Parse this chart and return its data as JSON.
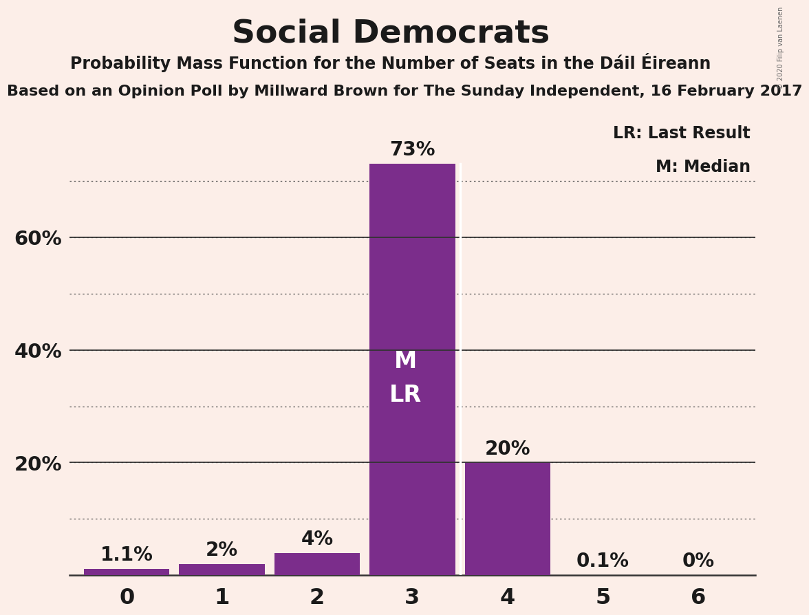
{
  "title": "Social Democrats",
  "subtitle": "Probability Mass Function for the Number of Seats in the Dáil Éireann",
  "source_line": "Based on an Opinion Poll by Millward Brown for The Sunday Independent, 16 February 2017",
  "copyright": "© 2020 Filip van Laenen",
  "categories": [
    0,
    1,
    2,
    3,
    4,
    5,
    6
  ],
  "values": [
    1.1,
    2.0,
    4.0,
    73.0,
    20.0,
    0.1,
    0.0
  ],
  "bar_labels": [
    "1.1%",
    "2%",
    "4%",
    "73%",
    "20%",
    "0.1%",
    "0%"
  ],
  "bar_color": "#7b2d8b",
  "background_color": "#fceee8",
  "title_fontsize": 34,
  "subtitle_fontsize": 17,
  "source_fontsize": 16,
  "ylim": [
    0,
    82
  ],
  "legend_text_lr": "LR: Last Result",
  "legend_text_m": "M: Median",
  "bar_label_outside_color": "#1a1a1a",
  "bar_label_fontsize": 20,
  "inside_label_bar": 3,
  "divider_color": "#ffffff",
  "dotted_levels": [
    10,
    20,
    30,
    40,
    50,
    60,
    70
  ],
  "solid_levels": [
    20,
    40,
    60
  ],
  "ytick_labels": [
    "20%",
    "40%",
    "60%"
  ],
  "ytick_values": [
    20,
    40,
    60
  ],
  "bar_width": 0.9
}
